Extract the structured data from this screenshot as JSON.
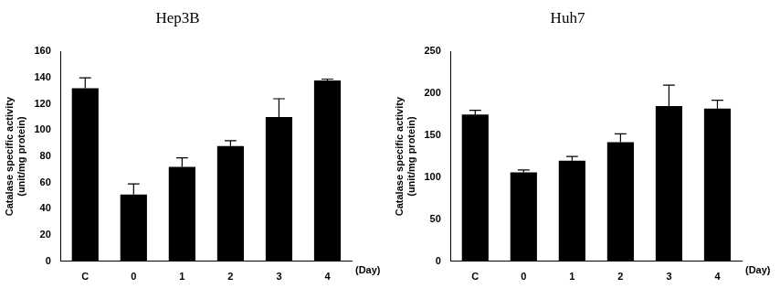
{
  "chart_data": [
    {
      "type": "bar",
      "title": "Hep3B",
      "y_label": [
        "Catalase specific activity",
        "(unit/mg protein)"
      ],
      "x_label": "(Day)",
      "categories": [
        "C",
        "0",
        "1",
        "2",
        "3",
        "4"
      ],
      "values": [
        132,
        51,
        72,
        88,
        110,
        138
      ],
      "errors": [
        8,
        8,
        7,
        4,
        14,
        1
      ],
      "color": "#000000",
      "ylim": [
        0,
        160
      ],
      "yticks": [
        0,
        20,
        40,
        60,
        80,
        100,
        120,
        140,
        160
      ],
      "grid": false
    },
    {
      "type": "bar",
      "title": "Huh7",
      "y_label": [
        "Catalase specific activity",
        "(unit/mg protein)"
      ],
      "x_label": "(Day)",
      "categories": [
        "C",
        "0",
        "1",
        "2",
        "3",
        "4"
      ],
      "values": [
        175,
        106,
        120,
        142,
        185,
        182
      ],
      "errors": [
        5,
        3,
        5,
        10,
        25,
        10
      ],
      "color": "#000000",
      "ylim": [
        0,
        250
      ],
      "yticks": [
        0,
        50,
        100,
        150,
        200,
        250
      ],
      "grid": false
    }
  ]
}
